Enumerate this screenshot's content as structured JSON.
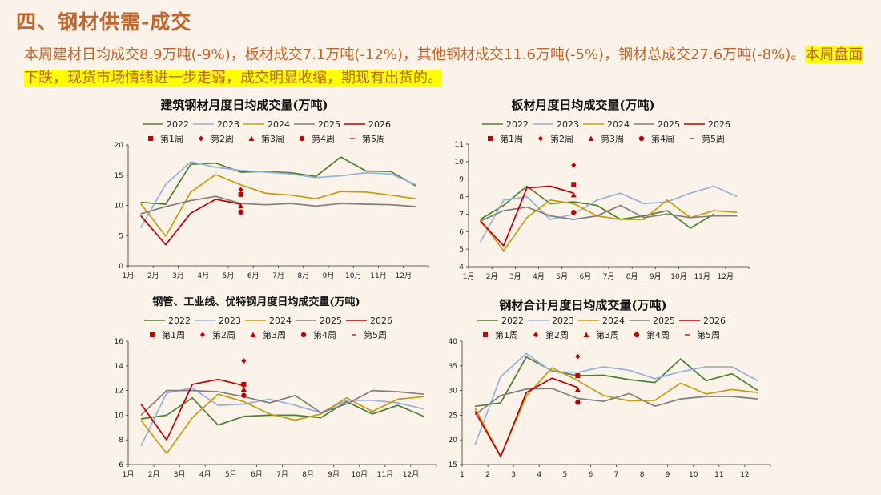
{
  "page": {
    "title": "四、钢材供需-成交",
    "summary_plain": "本周建材日均成交8.9万吨(-9%)，板材成交7.1万吨(-12%)，其他钢材成交11.6万吨(-5%)，钢材总成交27.6万吨(-8%)。",
    "summary_highlight": "本周盘面下跌，现货市场情绪进一步走弱，成交明显收缩，期现有出货的。"
  },
  "colors": {
    "2022": "#4e7f34",
    "2023": "#96b1db",
    "2024": "#c89a12",
    "2025": "#7f7f7f",
    "2026": "#c00000",
    "marker": "#c00000"
  },
  "chart_data": [
    {
      "type": "line",
      "title": "建筑钢材月度日均成交量(万吨)",
      "categories": [
        "1月",
        "2月",
        "3月",
        "4月",
        "5月",
        "6月",
        "7月",
        "8月",
        "9月",
        "10月",
        "11月",
        "12月"
      ],
      "ylim": [
        0,
        20
      ],
      "yticks": [
        0,
        5,
        10,
        15,
        20
      ],
      "series": [
        {
          "name": "2022",
          "values": [
            10.5,
            10.2,
            16.8,
            17.0,
            15.5,
            15.6,
            15.4,
            14.8,
            18.0,
            15.7,
            15.6,
            13.2
          ]
        },
        {
          "name": "2023",
          "values": [
            6.3,
            13.5,
            17.2,
            16.3,
            15.8,
            15.5,
            15.2,
            14.6,
            14.9,
            15.4,
            15.2,
            13.4
          ]
        },
        {
          "name": "2024",
          "values": [
            10.3,
            4.9,
            12.2,
            15.1,
            13.4,
            12.0,
            11.7,
            11.1,
            12.3,
            12.2,
            11.7,
            11.1
          ]
        },
        {
          "name": "2025",
          "values": [
            8.6,
            9.8,
            10.8,
            11.5,
            10.3,
            10.1,
            10.3,
            9.9,
            10.3,
            10.2,
            10.1,
            9.8
          ]
        },
        {
          "name": "2026",
          "values": [
            8.3,
            3.5,
            8.7,
            11.0,
            10.2,
            null,
            null,
            null,
            null,
            null,
            null,
            null
          ]
        }
      ],
      "weekly_labels": [
        "第1周",
        "第2周",
        "第3周",
        "第4周",
        "第5周"
      ],
      "weekly_month": "5月",
      "weekly": [
        11.8,
        12.6,
        9.9,
        8.9,
        null
      ]
    },
    {
      "type": "line",
      "title": "板材月度日均成交量(万吨)",
      "categories": [
        "1月",
        "2月",
        "3月",
        "4月",
        "5月",
        "6月",
        "7月",
        "8月",
        "9月",
        "10月",
        "11月",
        "12月"
      ],
      "ylim": [
        4,
        11
      ],
      "yticks": [
        4,
        5,
        6,
        7,
        8,
        9,
        10,
        11
      ],
      "series": [
        {
          "name": "2022",
          "values": [
            6.7,
            7.5,
            8.6,
            7.6,
            7.7,
            7.5,
            6.7,
            6.9,
            7.2,
            6.2,
            7.0,
            null
          ]
        },
        {
          "name": "2023",
          "values": [
            5.4,
            7.8,
            8.0,
            6.7,
            7.0,
            7.8,
            8.2,
            7.6,
            7.7,
            8.2,
            8.6,
            8.0
          ]
        },
        {
          "name": "2024",
          "values": [
            6.7,
            4.9,
            6.8,
            7.8,
            7.6,
            6.9,
            6.7,
            6.7,
            7.8,
            6.8,
            7.2,
            7.1
          ]
        },
        {
          "name": "2025",
          "values": [
            6.6,
            7.2,
            7.4,
            6.9,
            6.7,
            6.9,
            7.5,
            6.8,
            7.0,
            6.8,
            6.9,
            6.9
          ]
        },
        {
          "name": "2026",
          "values": [
            6.6,
            5.2,
            8.5,
            8.6,
            8.2,
            null,
            null,
            null,
            null,
            null,
            null,
            null
          ]
        }
      ],
      "weekly_labels": [
        "第1周",
        "第2周",
        "第3周",
        "第4周",
        "第5周"
      ],
      "weekly_month": "5月",
      "weekly": [
        8.7,
        9.8,
        8.1,
        7.1,
        null
      ]
    },
    {
      "type": "line",
      "title": "钢管、工业线、优特钢月度日均成交量(万吨)",
      "categories": [
        "1月",
        "2月",
        "3月",
        "4月",
        "5月",
        "6月",
        "7月",
        "8月",
        "9月",
        "10月",
        "11月",
        "12月"
      ],
      "ylim": [
        6,
        16
      ],
      "yticks": [
        6,
        8,
        10,
        12,
        14,
        16
      ],
      "series": [
        {
          "name": "2022",
          "values": [
            9.7,
            10.0,
            11.4,
            9.2,
            9.9,
            10.0,
            10.0,
            9.8,
            11.1,
            10.1,
            10.8,
            9.9
          ]
        },
        {
          "name": "2023",
          "values": [
            7.5,
            11.8,
            12.2,
            10.8,
            10.9,
            11.3,
            10.8,
            10.2,
            11.2,
            11.2,
            11.0,
            10.5
          ]
        },
        {
          "name": "2024",
          "values": [
            9.6,
            6.9,
            9.8,
            11.7,
            11.1,
            10.1,
            9.6,
            10.1,
            11.4,
            10.3,
            11.3,
            11.5
          ]
        },
        {
          "name": "2025",
          "values": [
            10.0,
            12.0,
            12.0,
            11.9,
            11.5,
            11.0,
            11.6,
            10.2,
            10.9,
            12.0,
            11.9,
            11.7
          ]
        },
        {
          "name": "2026",
          "values": [
            10.9,
            8.0,
            12.5,
            12.9,
            12.4,
            null,
            null,
            null,
            null,
            null,
            null,
            null
          ]
        }
      ],
      "weekly_labels": [
        "第1周",
        "第2周",
        "第3周",
        "第4周",
        "第5周"
      ],
      "weekly_month": "5月",
      "weekly": [
        12.5,
        14.4,
        12.1,
        11.6,
        null
      ]
    },
    {
      "type": "line",
      "title": "钢材合计月度日均成交量(万吨)",
      "categories": [
        "1",
        "2",
        "3",
        "4",
        "5",
        "6",
        "7",
        "8",
        "9",
        "10",
        "11",
        "12"
      ],
      "ylim": [
        15,
        40
      ],
      "yticks": [
        15,
        20,
        25,
        30,
        35,
        40
      ],
      "series": [
        {
          "name": "2022",
          "values": [
            26.8,
            27.5,
            36.8,
            34.0,
            33.0,
            33.1,
            32.2,
            31.6,
            36.4,
            32.0,
            33.4,
            30.0
          ]
        },
        {
          "name": "2023",
          "values": [
            19.0,
            32.8,
            37.5,
            33.8,
            33.7,
            34.8,
            34.1,
            32.4,
            33.8,
            34.8,
            34.8,
            32.0
          ]
        },
        {
          "name": "2024",
          "values": [
            26.5,
            16.7,
            28.9,
            34.6,
            32.0,
            29.0,
            27.9,
            28.0,
            31.5,
            29.3,
            30.2,
            29.6
          ]
        },
        {
          "name": "2025",
          "values": [
            25.1,
            29.0,
            30.3,
            30.4,
            28.4,
            27.8,
            29.4,
            26.8,
            28.3,
            28.8,
            28.8,
            28.3
          ]
        },
        {
          "name": "2026",
          "values": [
            25.8,
            16.6,
            29.6,
            32.5,
            30.6,
            null,
            null,
            null,
            null,
            null,
            null,
            null
          ]
        }
      ],
      "weekly_labels": [
        "第1周",
        "第2周",
        "第3周",
        "第4周",
        "第5周"
      ],
      "weekly_month": "5",
      "weekly": [
        33.0,
        36.9,
        30.2,
        27.6,
        null
      ]
    }
  ]
}
